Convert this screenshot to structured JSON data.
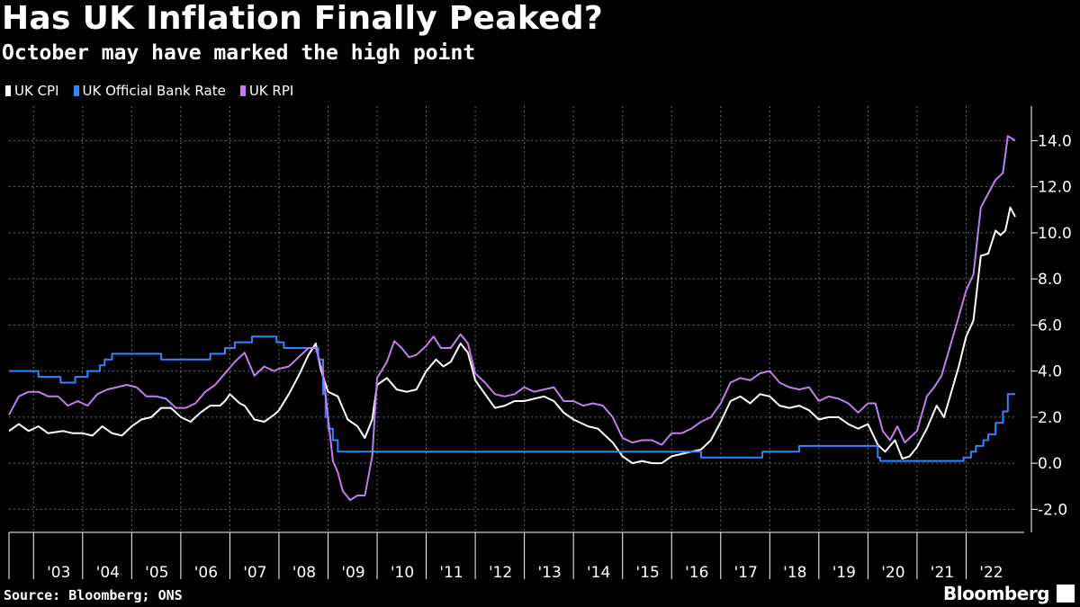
{
  "header": {
    "title": "Has UK Inflation Finally Peaked?",
    "subtitle": "October may have marked the high point"
  },
  "footer": {
    "source": "Source: Bloomberg; ONS",
    "brand": "Bloomberg",
    "brand_icon": "bloomberg-terminal-icon"
  },
  "chart_data": {
    "type": "line",
    "title": "Has UK Inflation Finally Peaked?",
    "subtitle": "October may have marked the high point",
    "xlabel": "",
    "ylabel": "",
    "grid": true,
    "legend_position": "top-left",
    "xlim": [
      2002.5,
      2023.0
    ],
    "ylim": [
      -3.0,
      15.5
    ],
    "y_ticks": [
      -2.0,
      0.0,
      2.0,
      4.0,
      6.0,
      8.0,
      10.0,
      12.0,
      14.0
    ],
    "y_tick_labels": [
      "-2.0",
      "0.0",
      "2.0",
      "4.0",
      "6.0",
      "8.0",
      "10.0",
      "12.0",
      "14.0"
    ],
    "x_tick_labels": [
      "'03",
      "'04",
      "'05",
      "'06",
      "'07",
      "'08",
      "'09",
      "'10",
      "'11",
      "'12",
      "'13",
      "'14",
      "'15",
      "'16",
      "'17",
      "'18",
      "'19",
      "'20",
      "'21",
      "'22"
    ],
    "x_tick_years": [
      2003,
      2004,
      2005,
      2006,
      2007,
      2008,
      2009,
      2010,
      2011,
      2012,
      2013,
      2014,
      2015,
      2016,
      2017,
      2018,
      2019,
      2020,
      2021,
      2022
    ],
    "series": [
      {
        "name": "UK CPI",
        "color": "#ffffff",
        "step": false,
        "points": [
          [
            2002.5,
            1.4
          ],
          [
            2002.7,
            1.7
          ],
          [
            2002.9,
            1.4
          ],
          [
            2003.1,
            1.6
          ],
          [
            2003.3,
            1.3
          ],
          [
            2003.6,
            1.4
          ],
          [
            2003.8,
            1.3
          ],
          [
            2004.0,
            1.3
          ],
          [
            2004.2,
            1.2
          ],
          [
            2004.4,
            1.6
          ],
          [
            2004.6,
            1.3
          ],
          [
            2004.8,
            1.2
          ],
          [
            2005.0,
            1.6
          ],
          [
            2005.2,
            1.9
          ],
          [
            2005.4,
            2.0
          ],
          [
            2005.6,
            2.4
          ],
          [
            2005.8,
            2.4
          ],
          [
            2006.0,
            2.0
          ],
          [
            2006.2,
            1.8
          ],
          [
            2006.4,
            2.2
          ],
          [
            2006.6,
            2.5
          ],
          [
            2006.8,
            2.5
          ],
          [
            2006.9,
            2.7
          ],
          [
            2007.0,
            3.0
          ],
          [
            2007.2,
            2.6
          ],
          [
            2007.3,
            2.5
          ],
          [
            2007.5,
            1.9
          ],
          [
            2007.7,
            1.8
          ],
          [
            2007.9,
            2.1
          ],
          [
            2008.0,
            2.3
          ],
          [
            2008.2,
            3.0
          ],
          [
            2008.4,
            3.8
          ],
          [
            2008.6,
            4.7
          ],
          [
            2008.75,
            5.2
          ],
          [
            2008.85,
            4.1
          ],
          [
            2009.0,
            3.1
          ],
          [
            2009.2,
            2.9
          ],
          [
            2009.4,
            1.9
          ],
          [
            2009.6,
            1.6
          ],
          [
            2009.75,
            1.1
          ],
          [
            2009.9,
            1.9
          ],
          [
            2010.0,
            3.4
          ],
          [
            2010.2,
            3.7
          ],
          [
            2010.4,
            3.2
          ],
          [
            2010.6,
            3.1
          ],
          [
            2010.8,
            3.2
          ],
          [
            2011.0,
            4.0
          ],
          [
            2011.2,
            4.5
          ],
          [
            2011.35,
            4.2
          ],
          [
            2011.5,
            4.4
          ],
          [
            2011.7,
            5.2
          ],
          [
            2011.85,
            4.8
          ],
          [
            2012.0,
            3.6
          ],
          [
            2012.2,
            3.0
          ],
          [
            2012.4,
            2.4
          ],
          [
            2012.6,
            2.5
          ],
          [
            2012.8,
            2.7
          ],
          [
            2013.0,
            2.7
          ],
          [
            2013.2,
            2.8
          ],
          [
            2013.4,
            2.9
          ],
          [
            2013.6,
            2.7
          ],
          [
            2013.8,
            2.2
          ],
          [
            2014.0,
            1.9
          ],
          [
            2014.3,
            1.6
          ],
          [
            2014.5,
            1.5
          ],
          [
            2014.8,
            0.9
          ],
          [
            2015.0,
            0.3
          ],
          [
            2015.2,
            0.0
          ],
          [
            2015.4,
            0.1
          ],
          [
            2015.6,
            0.0
          ],
          [
            2015.8,
            0.0
          ],
          [
            2016.0,
            0.3
          ],
          [
            2016.2,
            0.4
          ],
          [
            2016.4,
            0.5
          ],
          [
            2016.6,
            0.6
          ],
          [
            2016.8,
            1.0
          ],
          [
            2017.0,
            1.8
          ],
          [
            2017.2,
            2.7
          ],
          [
            2017.4,
            2.9
          ],
          [
            2017.6,
            2.6
          ],
          [
            2017.8,
            3.0
          ],
          [
            2018.0,
            2.9
          ],
          [
            2018.2,
            2.5
          ],
          [
            2018.4,
            2.4
          ],
          [
            2018.6,
            2.5
          ],
          [
            2018.8,
            2.3
          ],
          [
            2019.0,
            1.9
          ],
          [
            2019.2,
            2.0
          ],
          [
            2019.4,
            2.0
          ],
          [
            2019.6,
            1.7
          ],
          [
            2019.8,
            1.5
          ],
          [
            2020.0,
            1.7
          ],
          [
            2020.2,
            0.8
          ],
          [
            2020.35,
            0.5
          ],
          [
            2020.55,
            1.0
          ],
          [
            2020.7,
            0.2
          ],
          [
            2020.85,
            0.3
          ],
          [
            2021.0,
            0.7
          ],
          [
            2021.2,
            1.5
          ],
          [
            2021.4,
            2.5
          ],
          [
            2021.55,
            2.0
          ],
          [
            2021.7,
            3.1
          ],
          [
            2021.85,
            4.2
          ],
          [
            2022.0,
            5.5
          ],
          [
            2022.15,
            6.2
          ],
          [
            2022.3,
            9.0
          ],
          [
            2022.45,
            9.1
          ],
          [
            2022.6,
            10.1
          ],
          [
            2022.7,
            9.9
          ],
          [
            2022.8,
            10.1
          ],
          [
            2022.9,
            11.1
          ],
          [
            2023.0,
            10.7
          ]
        ]
      },
      {
        "name": "UK Official Bank Rate",
        "color": "#2f86ff",
        "step": true,
        "points": [
          [
            2002.5,
            4.0
          ],
          [
            2003.1,
            3.75
          ],
          [
            2003.55,
            3.5
          ],
          [
            2003.85,
            3.75
          ],
          [
            2004.1,
            4.0
          ],
          [
            2004.35,
            4.25
          ],
          [
            2004.45,
            4.5
          ],
          [
            2004.6,
            4.75
          ],
          [
            2005.6,
            4.5
          ],
          [
            2006.6,
            4.75
          ],
          [
            2006.9,
            5.0
          ],
          [
            2007.1,
            5.25
          ],
          [
            2007.45,
            5.5
          ],
          [
            2007.95,
            5.25
          ],
          [
            2008.1,
            5.0
          ],
          [
            2008.8,
            4.5
          ],
          [
            2008.9,
            3.0
          ],
          [
            2008.95,
            2.0
          ],
          [
            2009.0,
            1.5
          ],
          [
            2009.1,
            1.0
          ],
          [
            2009.2,
            0.5
          ],
          [
            2016.6,
            0.25
          ],
          [
            2017.85,
            0.5
          ],
          [
            2018.6,
            0.75
          ],
          [
            2020.2,
            0.25
          ],
          [
            2020.25,
            0.1
          ],
          [
            2021.95,
            0.25
          ],
          [
            2022.1,
            0.5
          ],
          [
            2022.2,
            0.75
          ],
          [
            2022.35,
            1.0
          ],
          [
            2022.45,
            1.25
          ],
          [
            2022.6,
            1.75
          ],
          [
            2022.75,
            2.25
          ],
          [
            2022.85,
            3.0
          ],
          [
            2023.0,
            3.0
          ]
        ]
      },
      {
        "name": "UK RPI",
        "color": "#c17cf0",
        "step": false,
        "points": [
          [
            2002.5,
            2.1
          ],
          [
            2002.7,
            2.9
          ],
          [
            2002.9,
            3.1
          ],
          [
            2003.1,
            3.1
          ],
          [
            2003.3,
            2.9
          ],
          [
            2003.5,
            2.9
          ],
          [
            2003.7,
            2.5
          ],
          [
            2003.9,
            2.7
          ],
          [
            2004.1,
            2.5
          ],
          [
            2004.3,
            3.0
          ],
          [
            2004.5,
            3.2
          ],
          [
            2004.7,
            3.3
          ],
          [
            2004.9,
            3.4
          ],
          [
            2005.1,
            3.3
          ],
          [
            2005.3,
            2.9
          ],
          [
            2005.5,
            2.9
          ],
          [
            2005.7,
            2.8
          ],
          [
            2005.9,
            2.4
          ],
          [
            2006.1,
            2.4
          ],
          [
            2006.3,
            2.6
          ],
          [
            2006.5,
            3.1
          ],
          [
            2006.7,
            3.4
          ],
          [
            2006.9,
            3.9
          ],
          [
            2007.1,
            4.4
          ],
          [
            2007.3,
            4.8
          ],
          [
            2007.4,
            4.3
          ],
          [
            2007.5,
            3.8
          ],
          [
            2007.7,
            4.2
          ],
          [
            2007.9,
            4.0
          ],
          [
            2008.0,
            4.1
          ],
          [
            2008.2,
            4.2
          ],
          [
            2008.4,
            4.6
          ],
          [
            2008.6,
            5.0
          ],
          [
            2008.75,
            5.0
          ],
          [
            2008.9,
            3.9
          ],
          [
            2009.0,
            2.0
          ],
          [
            2009.1,
            0.1
          ],
          [
            2009.2,
            -0.4
          ],
          [
            2009.3,
            -1.2
          ],
          [
            2009.45,
            -1.6
          ],
          [
            2009.6,
            -1.4
          ],
          [
            2009.75,
            -1.4
          ],
          [
            2009.9,
            0.3
          ],
          [
            2010.0,
            3.7
          ],
          [
            2010.2,
            4.4
          ],
          [
            2010.35,
            5.3
          ],
          [
            2010.5,
            5.0
          ],
          [
            2010.65,
            4.6
          ],
          [
            2010.8,
            4.7
          ],
          [
            2011.0,
            5.1
          ],
          [
            2011.15,
            5.5
          ],
          [
            2011.3,
            5.0
          ],
          [
            2011.5,
            5.0
          ],
          [
            2011.7,
            5.6
          ],
          [
            2011.85,
            5.2
          ],
          [
            2012.0,
            3.9
          ],
          [
            2012.2,
            3.5
          ],
          [
            2012.4,
            3.0
          ],
          [
            2012.6,
            2.9
          ],
          [
            2012.8,
            3.0
          ],
          [
            2013.0,
            3.3
          ],
          [
            2013.2,
            3.1
          ],
          [
            2013.4,
            3.2
          ],
          [
            2013.6,
            3.3
          ],
          [
            2013.8,
            2.7
          ],
          [
            2014.0,
            2.7
          ],
          [
            2014.2,
            2.5
          ],
          [
            2014.4,
            2.6
          ],
          [
            2014.6,
            2.5
          ],
          [
            2014.8,
            2.0
          ],
          [
            2015.0,
            1.1
          ],
          [
            2015.2,
            0.9
          ],
          [
            2015.4,
            1.0
          ],
          [
            2015.6,
            1.0
          ],
          [
            2015.8,
            0.8
          ],
          [
            2016.0,
            1.3
          ],
          [
            2016.2,
            1.3
          ],
          [
            2016.4,
            1.5
          ],
          [
            2016.6,
            1.8
          ],
          [
            2016.8,
            2.0
          ],
          [
            2017.0,
            2.6
          ],
          [
            2017.2,
            3.5
          ],
          [
            2017.4,
            3.7
          ],
          [
            2017.6,
            3.6
          ],
          [
            2017.8,
            3.9
          ],
          [
            2018.0,
            4.0
          ],
          [
            2018.2,
            3.5
          ],
          [
            2018.4,
            3.3
          ],
          [
            2018.6,
            3.2
          ],
          [
            2018.8,
            3.3
          ],
          [
            2019.0,
            2.7
          ],
          [
            2019.2,
            2.9
          ],
          [
            2019.4,
            2.8
          ],
          [
            2019.6,
            2.6
          ],
          [
            2019.8,
            2.2
          ],
          [
            2020.0,
            2.6
          ],
          [
            2020.15,
            2.6
          ],
          [
            2020.3,
            1.4
          ],
          [
            2020.45,
            1.0
          ],
          [
            2020.6,
            1.6
          ],
          [
            2020.75,
            0.9
          ],
          [
            2020.9,
            1.2
          ],
          [
            2021.0,
            1.4
          ],
          [
            2021.2,
            2.9
          ],
          [
            2021.35,
            3.3
          ],
          [
            2021.5,
            3.8
          ],
          [
            2021.65,
            4.9
          ],
          [
            2021.8,
            6.0
          ],
          [
            2022.0,
            7.5
          ],
          [
            2022.15,
            8.2
          ],
          [
            2022.3,
            11.1
          ],
          [
            2022.45,
            11.7
          ],
          [
            2022.6,
            12.3
          ],
          [
            2022.75,
            12.6
          ],
          [
            2022.85,
            14.2
          ],
          [
            2023.0,
            14.0
          ]
        ]
      }
    ]
  }
}
